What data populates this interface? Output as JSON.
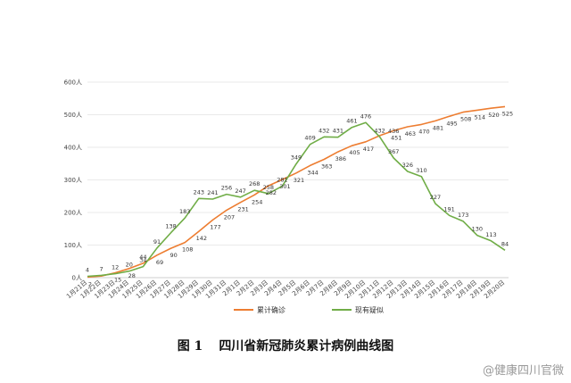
{
  "chart_data": {
    "type": "line",
    "ylim": [
      0,
      600
    ],
    "yticks": [
      "0人",
      "100人",
      "200人",
      "300人",
      "400人",
      "500人",
      "600人"
    ],
    "categories": [
      "1月21日",
      "1月22日",
      "1月23日",
      "1月24日",
      "1月25日",
      "1月26日",
      "1月27日",
      "1月28日",
      "1月29日",
      "1月30日",
      "1月31日",
      "2月1日",
      "2月2日",
      "2月3日",
      "2月4日",
      "2月5日",
      "2月6日",
      "2月7日",
      "2月8日",
      "2月9日",
      "2月10日",
      "2月11日",
      "2月12日",
      "2月13日",
      "2月14日",
      "2月15日",
      "2月16日",
      "2月17日",
      "2月18日",
      "2月19日",
      "2月20日"
    ],
    "series": [
      {
        "name": "累计确诊",
        "color": "#ED7D31",
        "values": [
          2,
          5,
          15,
          28,
          44,
          69,
          90,
          108,
          142,
          177,
          207,
          231,
          254,
          282,
          301,
          321,
          344,
          363,
          386,
          405,
          417,
          436,
          451,
          463,
          470,
          481,
          495,
          508,
          514,
          520,
          525
        ],
        "labels": [
          "2",
          "",
          "15",
          "28",
          "",
          "69",
          "90",
          "108",
          "142",
          "177",
          "207",
          "231",
          "254",
          "282",
          "301",
          "321",
          "344",
          "363",
          "386",
          "405",
          "417",
          "",
          "451",
          "463",
          "470",
          "481",
          "495",
          "508",
          "514",
          "520",
          "525"
        ]
      },
      {
        "name": "现有疑似",
        "color": "#70AD47",
        "values": [
          4,
          7,
          12,
          20,
          34,
          91,
          138,
          183,
          243,
          241,
          256,
          247,
          268,
          258,
          281,
          349,
          409,
          432,
          431,
          461,
          476,
          432,
          367,
          326,
          310,
          227,
          191,
          173,
          130,
          113,
          84
        ],
        "labels": [
          "4",
          "7",
          "12",
          "20",
          "34",
          "91",
          "138",
          "183",
          "243",
          "241",
          "256",
          "247",
          "268",
          "258",
          "281",
          "349",
          "409",
          "432",
          "431",
          "461",
          "476",
          "432",
          "367",
          "326",
          "310",
          "227",
          "191",
          "173",
          "130",
          "113",
          "84"
        ]
      }
    ],
    "extra_labels": [
      "44",
      "436"
    ]
  },
  "caption": {
    "figure_no": "图 1",
    "title": "四川省新冠肺炎累计病例曲线图"
  },
  "watermark": "@健康四川官微"
}
